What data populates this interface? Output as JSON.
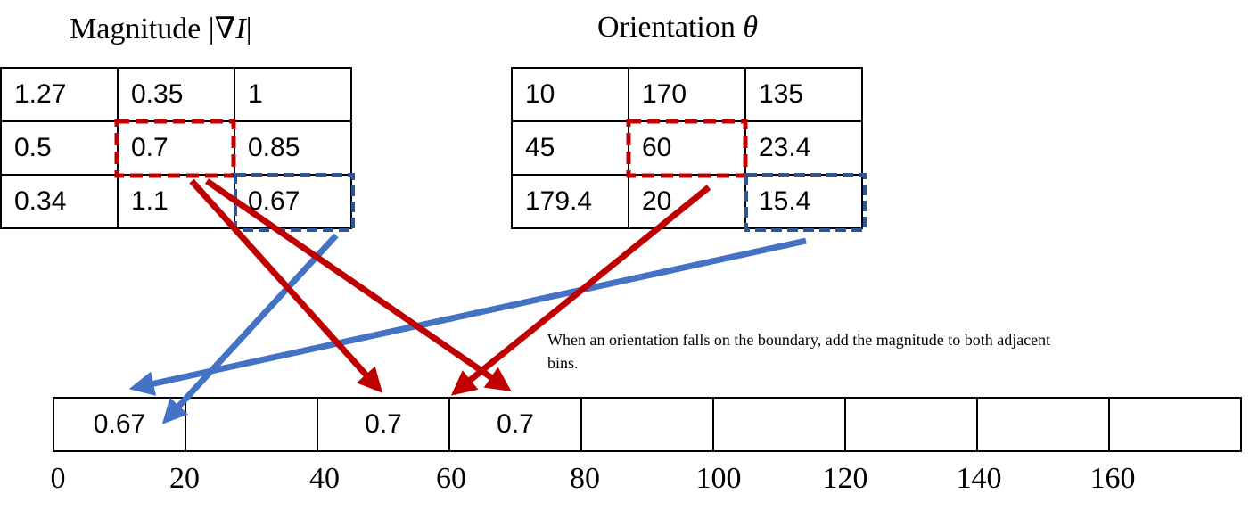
{
  "magnitude": {
    "title": "Magnitude |∇I|",
    "rows": [
      [
        "1.27",
        "0.35",
        "1"
      ],
      [
        "0.5",
        "0.7",
        "0.85"
      ],
      [
        "0.34",
        "1.1",
        "0.67"
      ]
    ]
  },
  "orientation": {
    "title": "Orientation θ",
    "rows": [
      [
        "10",
        "170",
        "135"
      ],
      [
        "45",
        "60",
        "23.4"
      ],
      [
        "179.4",
        "20",
        "15.4"
      ]
    ]
  },
  "histogram": {
    "bins": [
      "0.67",
      "",
      "0.7",
      "0.7",
      "",
      "",
      "",
      "",
      ""
    ],
    "ticks": [
      "0",
      "20",
      "40",
      "60",
      "80",
      "100",
      "120",
      "140",
      "160"
    ]
  },
  "note": "When an orientation falls on the boundary, add the magnitude to both adjacent bins.",
  "colors": {
    "red": "#c00000",
    "blue": "#4472c4",
    "dash_blue": "#2f5597"
  }
}
